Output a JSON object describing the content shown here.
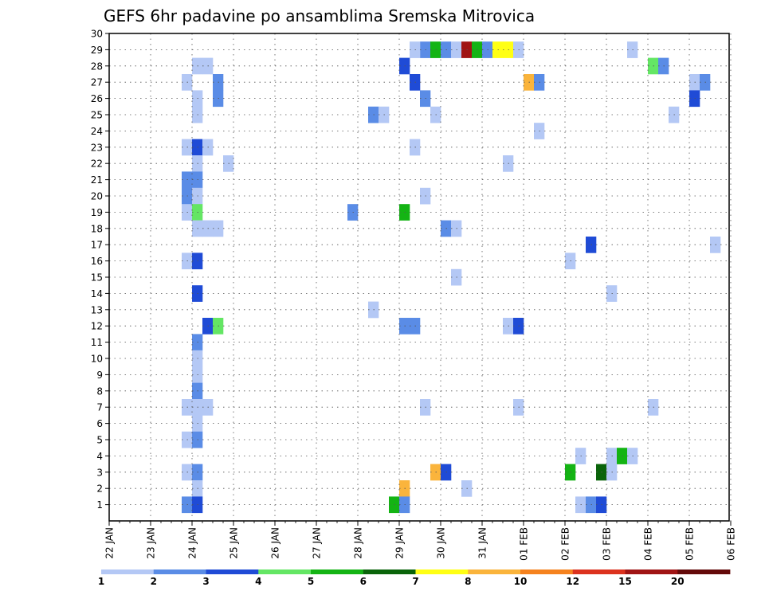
{
  "chart_data": {
    "type": "heatmap",
    "title": "GEFS 6hr padavine po ansamblima Sremska Mitrovica",
    "y_labels": [
      "1",
      "2",
      "3",
      "4",
      "5",
      "6",
      "7",
      "8",
      "9",
      "10",
      "11",
      "12",
      "13",
      "14",
      "15",
      "16",
      "17",
      "18",
      "19",
      "20",
      "21",
      "22",
      "23",
      "24",
      "25",
      "26",
      "27",
      "28",
      "29",
      "30"
    ],
    "x_labels": [
      "22 JAN",
      "23 JAN",
      "24 JAN",
      "25 JAN",
      "26 JAN",
      "27 JAN",
      "28 JAN",
      "29 JAN",
      "30 JAN",
      "31 JAN",
      "01 FEB",
      "02 FEB",
      "03 FEB",
      "04 FEB",
      "05 FEB",
      "06 FEB"
    ],
    "color_levels": [
      1,
      2,
      3,
      4,
      5,
      6,
      7,
      8,
      10,
      12,
      15,
      20
    ],
    "level_labels": [
      "1",
      "2",
      "3",
      "4",
      "5",
      "6",
      "7",
      "8",
      "10",
      "12",
      "15",
      "20"
    ],
    "colors": [
      "#b4c8f5",
      "#5a8ce6",
      "#1f4bd6",
      "#64e664",
      "#14b414",
      "#0a640a",
      "#ffff14",
      "#fab43c",
      "#f5821e",
      "#dc321e",
      "#a01414",
      "#640a0a"
    ],
    "cells": [
      [
        30,
        8,
        0
      ],
      [
        28,
        8,
        0
      ],
      [
        28,
        9,
        0
      ],
      [
        27,
        7,
        0
      ],
      [
        27,
        10,
        1
      ],
      [
        26,
        8,
        0
      ],
      [
        26,
        10,
        1
      ],
      [
        25,
        8,
        0
      ],
      [
        23,
        7,
        0
      ],
      [
        23,
        8,
        2
      ],
      [
        23,
        9,
        0
      ],
      [
        22,
        8,
        0
      ],
      [
        22,
        11,
        0
      ],
      [
        21,
        7,
        1
      ],
      [
        21,
        8,
        1
      ],
      [
        20,
        7,
        1
      ],
      [
        20,
        8,
        0
      ],
      [
        19,
        7,
        0
      ],
      [
        19,
        8,
        3
      ],
      [
        18,
        8,
        0
      ],
      [
        18,
        9,
        0
      ],
      [
        18,
        10,
        0
      ],
      [
        16,
        7,
        0
      ],
      [
        16,
        8,
        2
      ],
      [
        14,
        8,
        2
      ],
      [
        12,
        9,
        2
      ],
      [
        12,
        10,
        3
      ],
      [
        11,
        8,
        1
      ],
      [
        10,
        8,
        0
      ],
      [
        9,
        8,
        0
      ],
      [
        8,
        8,
        1
      ],
      [
        7,
        7,
        0
      ],
      [
        7,
        8,
        0
      ],
      [
        7,
        9,
        0
      ],
      [
        6,
        8,
        0
      ],
      [
        5,
        7,
        0
      ],
      [
        5,
        8,
        1
      ],
      [
        3,
        7,
        0
      ],
      [
        3,
        8,
        1
      ],
      [
        2,
        8,
        0
      ],
      [
        1,
        7,
        1
      ],
      [
        1,
        8,
        2
      ],
      [
        0,
        9,
        3
      ],
      [
        0,
        10,
        1
      ],
      [
        29,
        30,
        1
      ],
      [
        29,
        29,
        0
      ],
      [
        29,
        31,
        4
      ],
      [
        29,
        32,
        1
      ],
      [
        29,
        33,
        0
      ],
      [
        29,
        34,
        10
      ],
      [
        29,
        35,
        4
      ],
      [
        29,
        36,
        1
      ],
      [
        29,
        37,
        6
      ],
      [
        29,
        38,
        6
      ],
      [
        29,
        39,
        0
      ],
      [
        28,
        28,
        2
      ],
      [
        27,
        29,
        2
      ],
      [
        26,
        30,
        1
      ],
      [
        25,
        25,
        1
      ],
      [
        25,
        26,
        0
      ],
      [
        25,
        31,
        0
      ],
      [
        23,
        29,
        0
      ],
      [
        20,
        30,
        0
      ],
      [
        19,
        23,
        1
      ],
      [
        19,
        28,
        4
      ],
      [
        18,
        32,
        1
      ],
      [
        18,
        33,
        0
      ],
      [
        12,
        28,
        1
      ],
      [
        12,
        29,
        1
      ],
      [
        13,
        25,
        0
      ],
      [
        15,
        33,
        0
      ],
      [
        7,
        30,
        0
      ],
      [
        3,
        31,
        7
      ],
      [
        3,
        32,
        2
      ],
      [
        2,
        28,
        7
      ],
      [
        2,
        34,
        0
      ],
      [
        1,
        27,
        4
      ],
      [
        1,
        28,
        1
      ],
      [
        30,
        56,
        0
      ],
      [
        29,
        50,
        0
      ],
      [
        28,
        52,
        3
      ],
      [
        28,
        53,
        1
      ],
      [
        28,
        60,
        3
      ],
      [
        27,
        40,
        7
      ],
      [
        27,
        41,
        1
      ],
      [
        27,
        56,
        0
      ],
      [
        27,
        57,
        1
      ],
      [
        26,
        56,
        2
      ],
      [
        25,
        54,
        0
      ],
      [
        24,
        41,
        0
      ],
      [
        22,
        38,
        0
      ],
      [
        22,
        60,
        0
      ],
      [
        20,
        59,
        1
      ],
      [
        20,
        60,
        4
      ],
      [
        17,
        46,
        2
      ],
      [
        17,
        58,
        0
      ],
      [
        16,
        44,
        0
      ],
      [
        14,
        48,
        0
      ],
      [
        12,
        38,
        0
      ],
      [
        12,
        39,
        2
      ],
      [
        7,
        39,
        0
      ],
      [
        7,
        52,
        0
      ],
      [
        4,
        45,
        0
      ],
      [
        4,
        48,
        0
      ],
      [
        4,
        49,
        4
      ],
      [
        4,
        50,
        0
      ],
      [
        3,
        44,
        4
      ],
      [
        3,
        47,
        5
      ],
      [
        3,
        48,
        0
      ],
      [
        1,
        45,
        0
      ],
      [
        1,
        46,
        1
      ],
      [
        1,
        47,
        2
      ],
      [
        0,
        46,
        1
      ]
    ]
  }
}
